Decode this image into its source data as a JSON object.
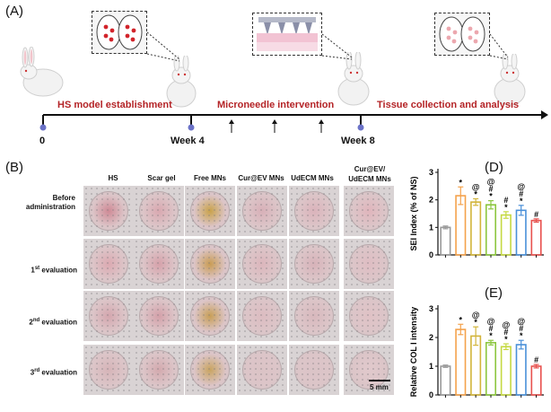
{
  "panels": {
    "a": "(A)",
    "b": "(B)",
    "d": "(D)",
    "e": "(E)"
  },
  "timeline": {
    "phases": [
      "HS model establishment",
      "Microneedle intervention",
      "Tissue collection and analysis"
    ],
    "ticks": [
      "0",
      "Week 4",
      "Week 8"
    ]
  },
  "grid": {
    "columns": [
      "HS",
      "Scar gel",
      "Free MNs",
      "Cur@EV MNs",
      "UdECM MNs",
      "Cur@EV/ UdECM MNs"
    ],
    "rows": [
      {
        "label": "Before administration"
      },
      {
        "label": "1st evaluation",
        "base": "1",
        "sup": "st",
        "rest": "evaluation"
      },
      {
        "label": "2nd evaluation",
        "base": "2",
        "sup": "nd",
        "rest": "evaluation"
      },
      {
        "label": "3rd evaluation",
        "base": "3",
        "sup": "rd",
        "rest": "evaluation"
      }
    ],
    "scale_bar": "5 mm"
  },
  "colors": {
    "bars": [
      "#9b9b9b",
      "#f4a24b",
      "#d2b53a",
      "#8cc63f",
      "#c5d941",
      "#4a90d9",
      "#e8524f"
    ],
    "timeline_red": "#b42326",
    "node": "#6b72c7"
  },
  "chart_data": [
    {
      "type": "bar",
      "panel": "(D)",
      "ylabel": "SEI Index (% of NS)",
      "ylim": [
        0,
        3
      ],
      "yticks": [
        0,
        1,
        2,
        3
      ],
      "values": [
        1.0,
        2.15,
        1.92,
        1.82,
        1.45,
        1.62,
        1.25
      ],
      "errors": [
        0.05,
        0.32,
        0.12,
        0.15,
        0.12,
        0.18,
        0.06
      ],
      "annotations": [
        [],
        [
          "*"
        ],
        [
          "@",
          "*"
        ],
        [
          "@",
          "#",
          "*"
        ],
        [
          "#",
          "*"
        ],
        [
          "@",
          "#",
          "*"
        ],
        [
          "#"
        ]
      ]
    },
    {
      "type": "bar",
      "panel": "(E)",
      "ylabel": "Relative COL I intensity",
      "ylim": [
        0,
        3
      ],
      "yticks": [
        0,
        1,
        2,
        3
      ],
      "values": [
        1.0,
        2.28,
        2.05,
        1.82,
        1.68,
        1.75,
        1.0
      ],
      "errors": [
        0.04,
        0.18,
        0.32,
        0.08,
        0.1,
        0.15,
        0.06
      ],
      "annotations": [
        [],
        [
          "*"
        ],
        [
          "@",
          "*"
        ],
        [
          "@",
          "#",
          "*"
        ],
        [
          "@",
          "#",
          "*"
        ],
        [
          "@",
          "#",
          "*"
        ],
        [
          "#"
        ]
      ]
    }
  ]
}
